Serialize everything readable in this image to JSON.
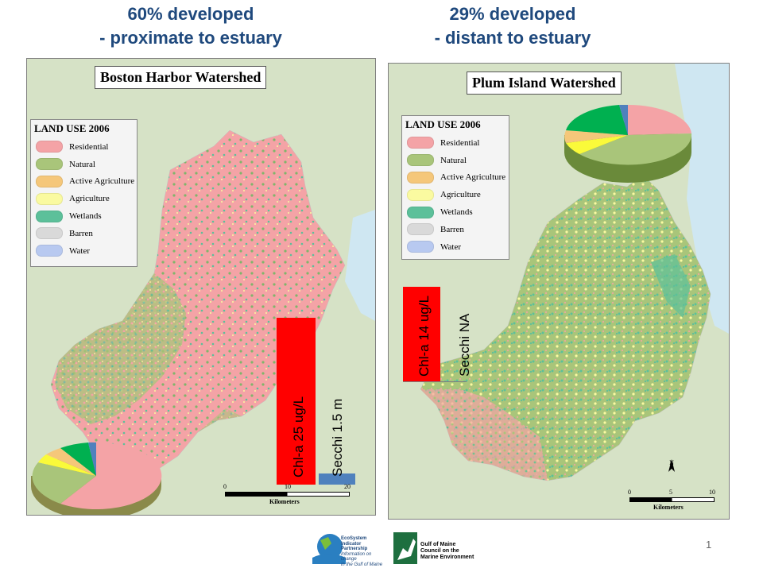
{
  "headings": {
    "left": {
      "line1": "60% developed",
      "line2": "- proximate to estuary"
    },
    "right": {
      "line1": "29% developed",
      "line2": "- distant to estuary"
    }
  },
  "colors": {
    "heading": "#1f497d",
    "residential": "#f4a3a6",
    "natural": "#a9c57a",
    "active_agriculture": "#f5c77a",
    "agriculture": "#fafaa0",
    "wetlands": "#5cc09a",
    "barren": "#d9d9d9",
    "water": "#b8c9f0",
    "chl_bar": "#ff0000",
    "secchi_bar": "#4f81bd"
  },
  "maps": {
    "left": {
      "title": "Boston Harbor Watershed",
      "legend": {
        "title": "LAND USE 2006",
        "items": [
          {
            "label": "Residential",
            "color": "#f4a3a6"
          },
          {
            "label": "Natural",
            "color": "#a9c57a"
          },
          {
            "label": "Active Agriculture",
            "color": "#f5c77a"
          },
          {
            "label": "Agriculture",
            "color": "#fafaa0"
          },
          {
            "label": "Wetlands",
            "color": "#5cc09a"
          },
          {
            "label": "Barren",
            "color": "#d9d9d9"
          },
          {
            "label": "Water",
            "color": "#b8c9f0"
          }
        ]
      },
      "chl_label": "Chl-a 25 ug/L",
      "chl_value": 25,
      "secchi_label": "Secchi 1.5 m",
      "secchi_value": 1.5,
      "scale": {
        "ticks": [
          "0",
          "10",
          "20"
        ],
        "unit": "Kilometers"
      }
    },
    "right": {
      "title": "Plum Island Watershed",
      "legend": {
        "title": "LAND USE 2006",
        "items": [
          {
            "label": "Residential",
            "color": "#f4a3a6"
          },
          {
            "label": "Natural",
            "color": "#a9c57a"
          },
          {
            "label": "Active Agriculture",
            "color": "#f5c77a"
          },
          {
            "label": "Agriculture",
            "color": "#fafaa0"
          },
          {
            "label": "Wetlands",
            "color": "#5cc09a"
          },
          {
            "label": "Barren",
            "color": "#d9d9d9"
          },
          {
            "label": "Water",
            "color": "#b8c9f0"
          }
        ]
      },
      "chl_label": "Chl-a 14 ug/L",
      "chl_value": 14,
      "secchi_label": "Secchi NA",
      "scale": {
        "ticks": [
          "0",
          "5",
          "10"
        ],
        "unit": "Kilometers",
        "north": "N"
      }
    }
  },
  "logos": {
    "esip": {
      "name1": "EcoSystem Indicator",
      "name2": "Partnership",
      "tag1": "Information on change",
      "tag2": "in the Gulf of Maine"
    },
    "gulf": {
      "line1": "Gulf of Maine",
      "line2": "Council on the",
      "line3": "Marine Environment"
    }
  },
  "page_number": "1"
}
